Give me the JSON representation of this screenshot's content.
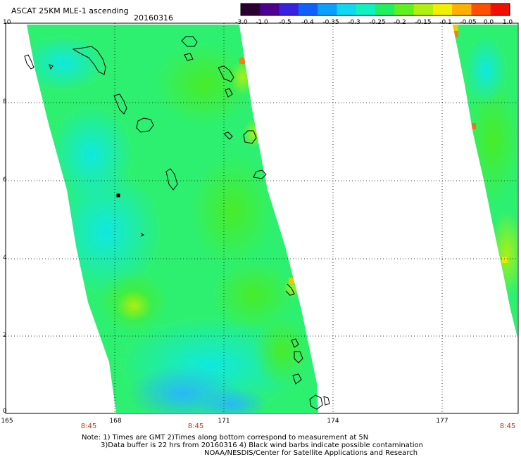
{
  "header": {
    "title": "ASCAT 25KM MLE-1 ascending",
    "date": "20160316"
  },
  "colorbar": {
    "labels": [
      "-3.0",
      "-1.0",
      "-0.5",
      "-0.4",
      "-0.35",
      "-0.3",
      "-0.25",
      "-0.2",
      "-0.15",
      "-0.1",
      "-0.05",
      "0.0",
      "1.0"
    ],
    "colors": [
      "#2a0030",
      "#4b0090",
      "#3a20e0",
      "#1060ff",
      "#0aa0ff",
      "#10d8f0",
      "#10f0c0",
      "#20f060",
      "#60f020",
      "#b0f010",
      "#f0f000",
      "#ffb000",
      "#ff5000",
      "#f01000"
    ]
  },
  "axes": {
    "y_ticks": [
      "10",
      "8",
      "6",
      "4",
      "2",
      "0"
    ],
    "x_ticks": [
      "165",
      "168",
      "171",
      "174",
      "177"
    ],
    "time_labels": [
      "8:45",
      "8:45",
      "8:45"
    ]
  },
  "legend_colors": {
    "swath_base": "#2ef070",
    "swath_cyan": "#18f0d8",
    "swath_green": "#48ec28",
    "swath_yellow": "#c8f010",
    "swath_blue": "#30c8f8",
    "time_label_color": "#b83a1a"
  },
  "notes": {
    "line1": "Note: 1) Times are GMT 2)Times along bottom correspond to measurement at 5N",
    "line2": "3)Data buffer is 22 hrs from 20160316 4) Black wind barbs indicate possible contamination",
    "line3": "NOAA/NESDIS/Center for Satellite Applications and Research"
  }
}
